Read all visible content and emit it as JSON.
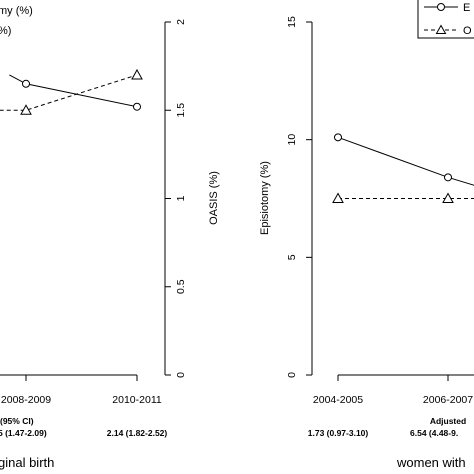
{
  "chart_data": [
    {
      "type": "line",
      "panel": "left",
      "title": "",
      "caption": "ginal birth",
      "categories": [
        "2008-2009",
        "2010-2011"
      ],
      "left_axis_title": "my (%)",
      "legend_fragment": "%)",
      "right_axis": {
        "label": "OASIS (%)",
        "ylim": [
          0,
          2
        ],
        "ticks": [
          "0",
          "0.5",
          "1",
          "1.5",
          "2"
        ]
      },
      "note_label": "(95% CI)",
      "note_values": [
        "5 (1.47-2.09)",
        "2.14 (1.82-2.52)"
      ],
      "series": [
        {
          "name": "",
          "marker": "circle",
          "dash": "solid",
          "values_pct_of_right": [
            1.65,
            1.52
          ],
          "x_start": -0.15,
          "y_start": 1.7
        },
        {
          "name": "",
          "marker": "triangle",
          "dash": "dashed",
          "values": [
            1.5,
            1.7
          ],
          "x_start": -0.3,
          "y_start": 1.5
        }
      ]
    },
    {
      "type": "line",
      "panel": "right",
      "title": "",
      "caption": "women with",
      "categories": [
        "2004-2005",
        "2006-2007"
      ],
      "ylabel": "Episiotomy (%)",
      "ylim": [
        0,
        15
      ],
      "yticks": [
        "0",
        "5",
        "10",
        "15"
      ],
      "note_label": "Adjusted",
      "note_values": [
        "1.73 (0.97-3.10)",
        "6.54 (4.48-9."
      ],
      "series": [
        {
          "name": "E",
          "marker": "circle",
          "dash": "solid",
          "values": [
            10.1,
            8.4
          ],
          "x_end": 1.35,
          "y_end": 7.9
        },
        {
          "name": "O",
          "marker": "triangle",
          "dash": "dashed",
          "values": [
            7.5,
            7.5
          ],
          "x_end": 1.35,
          "y_end": 7.5
        }
      ]
    }
  ]
}
